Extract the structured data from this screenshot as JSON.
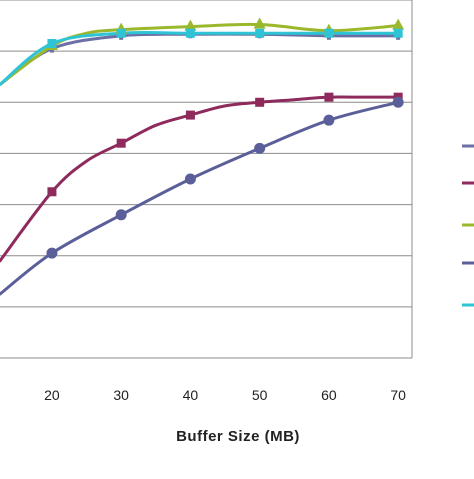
{
  "chart_data": {
    "type": "line",
    "title": "",
    "xlabel": "Buffer Size (MB)",
    "ylabel": "",
    "x_ticks": [
      20,
      30,
      40,
      50,
      60,
      70
    ],
    "xlim": [
      12.5,
      72
    ],
    "ylim": [
      0,
      7
    ],
    "grid": "horizontal",
    "legend": "right",
    "series": [
      {
        "color": "#6b6fa6",
        "marker": "none",
        "x": [
          12.5,
          20,
          30,
          40,
          50,
          60,
          70
        ],
        "y": [
          5.35,
          6.05,
          6.3,
          6.33,
          6.33,
          6.3,
          6.3
        ]
      },
      {
        "color": "#8e2a5c",
        "marker": "square",
        "x": [
          12.5,
          20,
          25,
          30,
          35,
          40,
          45,
          50,
          55,
          60,
          65,
          70
        ],
        "y": [
          1.9,
          3.25,
          3.85,
          4.2,
          4.55,
          4.75,
          4.93,
          5.0,
          5.05,
          5.1,
          5.1,
          5.1
        ]
      },
      {
        "color": "#9ab82c",
        "marker": "triangle",
        "x": [
          12.5,
          20,
          25,
          30,
          40,
          50,
          60,
          70
        ],
        "y": [
          5.35,
          6.1,
          6.35,
          6.42,
          6.48,
          6.52,
          6.4,
          6.5
        ]
      },
      {
        "color": "#5b5f99",
        "marker": "circle",
        "x": [
          12.5,
          20,
          30,
          40,
          50,
          60,
          70
        ],
        "y": [
          1.25,
          2.05,
          2.8,
          3.5,
          4.1,
          4.65,
          5.0
        ]
      },
      {
        "color": "#2ec4d6",
        "marker": "square",
        "x": [
          12.5,
          20,
          30,
          40,
          50,
          60,
          70
        ],
        "y": [
          5.35,
          6.15,
          6.35,
          6.35,
          6.35,
          6.35,
          6.35
        ]
      }
    ]
  }
}
